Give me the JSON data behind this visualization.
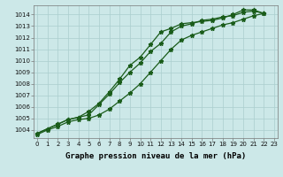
{
  "xlabel": "Graphe pression niveau de la mer (hPa)",
  "x_ticks": [
    0,
    1,
    2,
    3,
    4,
    5,
    6,
    7,
    8,
    9,
    10,
    11,
    12,
    13,
    14,
    15,
    16,
    17,
    18,
    19,
    20,
    21,
    22,
    23
  ],
  "ylim": [
    1003.3,
    1014.8
  ],
  "xlim": [
    -0.3,
    23.3
  ],
  "yticks": [
    1004,
    1005,
    1006,
    1007,
    1008,
    1009,
    1010,
    1011,
    1012,
    1013,
    1014
  ],
  "bg_color": "#cce8e8",
  "grid_color": "#aacece",
  "line_color": "#1a5c1a",
  "line1_x": [
    0,
    1,
    2,
    3,
    4,
    5,
    6,
    7,
    8,
    9,
    10,
    11,
    12,
    13,
    14,
    15,
    16,
    17,
    18,
    19,
    20,
    21,
    22
  ],
  "line1_y": [
    1003.7,
    1004.1,
    1004.5,
    1004.9,
    1005.1,
    1005.3,
    1006.2,
    1007.1,
    1008.1,
    1009.0,
    1009.8,
    1010.8,
    1011.5,
    1012.5,
    1013.0,
    1013.2,
    1013.5,
    1013.6,
    1013.8,
    1013.9,
    1014.2,
    1014.3,
    1014.1
  ],
  "line2_x": [
    0,
    1,
    2,
    3,
    4,
    5,
    6,
    7,
    8,
    9,
    10,
    11,
    12,
    13,
    14,
    15,
    16,
    17,
    18,
    19,
    20,
    21,
    22
  ],
  "line2_y": [
    1003.7,
    1004.1,
    1004.5,
    1004.9,
    1005.1,
    1005.6,
    1006.3,
    1007.3,
    1008.4,
    1009.6,
    1010.3,
    1011.4,
    1012.5,
    1012.8,
    1013.2,
    1013.3,
    1013.4,
    1013.5,
    1013.7,
    1014.0,
    1014.4,
    1014.4,
    1014.1
  ],
  "line3_x": [
    0,
    1,
    2,
    3,
    4,
    5,
    6,
    7,
    8,
    9,
    10,
    11,
    12,
    13,
    14,
    15,
    16,
    17,
    18,
    19,
    20,
    21,
    22
  ],
  "line3_y": [
    1003.6,
    1004.0,
    1004.3,
    1004.7,
    1004.9,
    1005.0,
    1005.3,
    1005.8,
    1006.5,
    1007.2,
    1008.0,
    1009.0,
    1010.0,
    1011.0,
    1011.8,
    1012.2,
    1012.5,
    1012.8,
    1013.1,
    1013.3,
    1013.6,
    1013.9,
    1014.1
  ],
  "marker": "*",
  "markersize": 3.5,
  "linewidth": 0.9,
  "tick_fontsize": 5.0,
  "label_fontsize": 6.5,
  "label_fontweight": "bold"
}
